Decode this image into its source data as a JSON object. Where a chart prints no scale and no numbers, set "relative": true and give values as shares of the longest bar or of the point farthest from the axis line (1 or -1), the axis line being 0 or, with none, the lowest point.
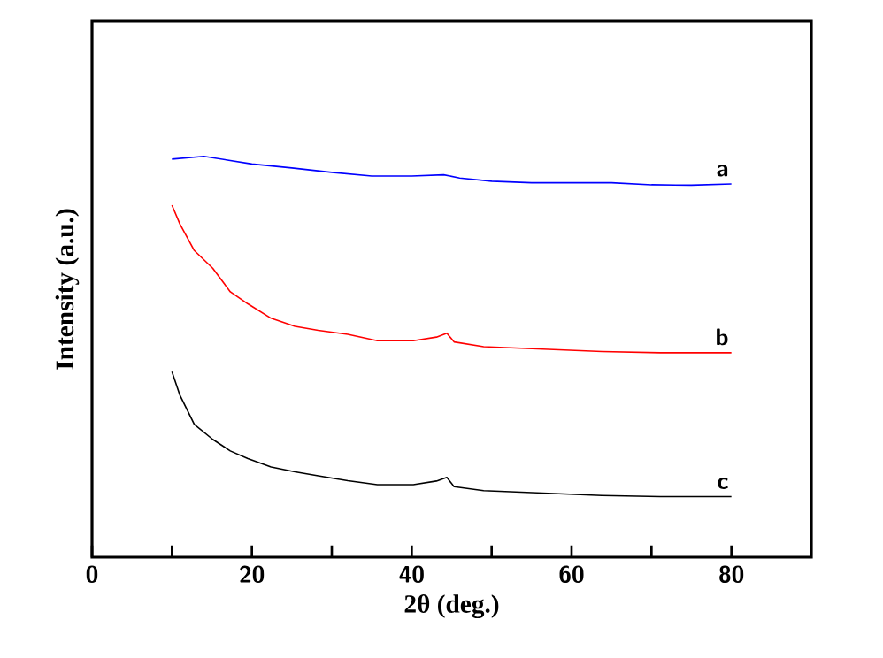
{
  "chart_data": {
    "type": "line",
    "xlabel": "2θ (deg.)",
    "ylabel": "Intensity (a.u.)",
    "relative": true,
    "xlim": [
      0,
      90
    ],
    "xticks": [
      0,
      {
        "value": 10,
        "label": null
      },
      20,
      {
        "value": 30,
        "label": null
      },
      40,
      {
        "value": 50,
        "label": null
      },
      60,
      {
        "value": 70,
        "label": null
      },
      80
    ],
    "x": [
      10.0,
      11.0,
      12.8,
      15.1,
      17.3,
      19.5,
      22.4,
      25.4,
      28.3,
      32.0,
      35.7,
      40.2,
      43.1,
      44.4,
      45.3,
      49.0,
      56.4,
      63.8,
      71.1,
      80.0
    ],
    "series": [
      {
        "name": "a",
        "color": "#0000ff",
        "x": [
          10.0,
          14.0,
          20.0,
          25.0,
          30.0,
          35.0,
          40.0,
          44.0,
          46.0,
          50.0,
          55.0,
          60.0,
          65.0,
          70.0,
          75.0,
          80.0
        ],
        "values": [
          0.993,
          1.0,
          0.981,
          0.971,
          0.96,
          0.951,
          0.951,
          0.954,
          0.946,
          0.938,
          0.934,
          0.934,
          0.934,
          0.929,
          0.928,
          0.931
        ]
      },
      {
        "name": "b",
        "color": "#ff0000",
        "values": [
          0.878,
          0.831,
          0.765,
          0.721,
          0.662,
          0.632,
          0.596,
          0.576,
          0.566,
          0.556,
          0.54,
          0.54,
          0.549,
          0.559,
          0.537,
          0.525,
          0.519,
          0.513,
          0.51,
          0.51
        ]
      },
      {
        "name": "c",
        "color": "#000000",
        "values": [
          0.463,
          0.404,
          0.331,
          0.294,
          0.265,
          0.246,
          0.225,
          0.213,
          0.203,
          0.191,
          0.181,
          0.181,
          0.19,
          0.199,
          0.176,
          0.166,
          0.16,
          0.154,
          0.151,
          0.151
        ]
      }
    ]
  }
}
